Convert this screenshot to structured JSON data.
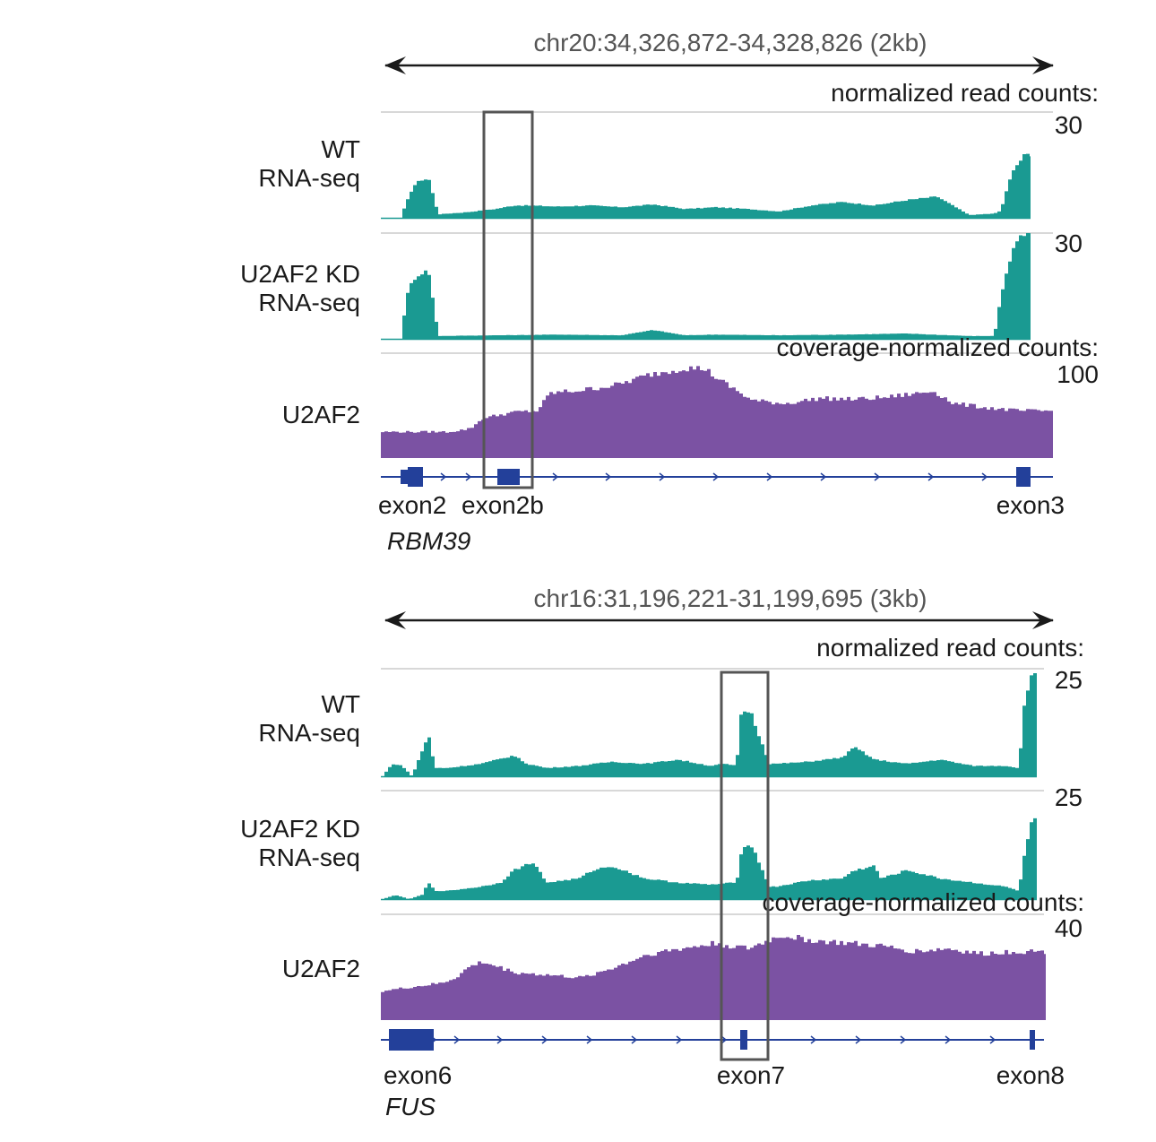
{
  "chart_data": [
    {
      "type": "area",
      "region": "chr20:34,326,872-34,328,826 (2kb)",
      "gene": "RBM39",
      "exons": [
        "exon2",
        "exon2b",
        "exon3"
      ],
      "rna_axis_label": "normalized read counts:",
      "clip_axis_label": "coverage-normalized counts:",
      "highlighted_exon": "exon2b",
      "tracks": [
        {
          "name_lines": [
            "WT",
            "RNA-seq"
          ],
          "color": "#1a9a92",
          "ymax": 30,
          "ymax_label": "30",
          "x": [
            0,
            0.02,
            0.035,
            0.045,
            0.06,
            0.1,
            0.15,
            0.18,
            0.2,
            0.25,
            0.3,
            0.35,
            0.4,
            0.45,
            0.5,
            0.55,
            0.6,
            0.65,
            0.7,
            0.75,
            0.8,
            0.85,
            0.9,
            0.94,
            0.95,
            0.97,
            0.99,
            1
          ],
          "values": [
            0,
            9,
            11,
            11,
            1,
            1.5,
            2.5,
            3.5,
            3.5,
            3.2,
            3.5,
            3,
            3.8,
            2.5,
            3,
            2.5,
            1.8,
            3.5,
            4.5,
            3.5,
            5,
            6,
            0.8,
            1.2,
            2,
            14,
            18,
            18
          ]
        },
        {
          "name_lines": [
            "U2AF2 KD",
            "RNA-seq"
          ],
          "color": "#1a9a92",
          "ymax": 30,
          "ymax_label": "30",
          "x": [
            0,
            0.01,
            0.02,
            0.035,
            0.045,
            0.06,
            0.15,
            0.25,
            0.35,
            0.4,
            0.45,
            0.5,
            0.6,
            0.7,
            0.8,
            0.9,
            0.94,
            0.95,
            0.97,
            0.99,
            1
          ],
          "values": [
            0,
            12,
            17,
            19,
            19,
            0.8,
            1,
            1.2,
            1,
            2.5,
            1,
            1.2,
            1,
            1.2,
            1.5,
            0.8,
            0.8,
            12,
            26,
            30,
            30
          ]
        },
        {
          "name_lines": [
            "U2AF2"
          ],
          "color": "#7b52a3",
          "ymax": 100,
          "ymax_label": "100",
          "x": [
            0,
            0.05,
            0.1,
            0.13,
            0.15,
            0.18,
            0.2,
            0.23,
            0.25,
            0.3,
            0.35,
            0.4,
            0.45,
            0.48,
            0.5,
            0.55,
            0.6,
            0.65,
            0.7,
            0.75,
            0.8,
            0.82,
            0.85,
            0.9,
            0.95,
            1
          ],
          "values": [
            25,
            25,
            25,
            28,
            38,
            42,
            44,
            45,
            62,
            65,
            70,
            80,
            86,
            85,
            75,
            55,
            52,
            57,
            56,
            58,
            62,
            64,
            52,
            48,
            45,
            45
          ]
        }
      ]
    },
    {
      "type": "area",
      "region": "chr16:31,196,221-31,199,695 (3kb)",
      "gene": "FUS",
      "exons": [
        "exon6",
        "exon7",
        "exon8"
      ],
      "rna_axis_label": "normalized read counts:",
      "clip_axis_label": "coverage-normalized counts:",
      "highlighted_exon": "exon7",
      "tracks": [
        {
          "name_lines": [
            "WT",
            "RNA-seq"
          ],
          "color": "#1a9a92",
          "ymax": 25,
          "ymax_label": "25",
          "x": [
            0,
            0.015,
            0.03,
            0.045,
            0.06,
            0.07,
            0.08,
            0.1,
            0.15,
            0.2,
            0.22,
            0.25,
            0.3,
            0.35,
            0.4,
            0.45,
            0.5,
            0.52,
            0.54,
            0.545,
            0.56,
            0.59,
            0.6,
            0.65,
            0.7,
            0.72,
            0.75,
            0.8,
            0.85,
            0.9,
            0.95,
            0.97,
            0.98,
            0.99,
            1
          ],
          "values": [
            0,
            3,
            2.5,
            0,
            6,
            10,
            2,
            2,
            3,
            5,
            3,
            2,
            2.5,
            3.5,
            3,
            4,
            2.5,
            3,
            2.5,
            15,
            16,
            3,
            3,
            3.5,
            4.5,
            7,
            4,
            3,
            4,
            2.5,
            2.5,
            2,
            20,
            24,
            24
          ]
        },
        {
          "name_lines": [
            "U2AF2 KD",
            "RNA-seq"
          ],
          "color": "#1a9a92",
          "ymax": 25,
          "ymax_label": "25",
          "x": [
            0,
            0.02,
            0.04,
            0.06,
            0.07,
            0.08,
            0.1,
            0.15,
            0.18,
            0.2,
            0.23,
            0.25,
            0.3,
            0.32,
            0.35,
            0.4,
            0.45,
            0.5,
            0.54,
            0.545,
            0.56,
            0.59,
            0.6,
            0.65,
            0.7,
            0.72,
            0.75,
            0.76,
            0.8,
            0.85,
            0.9,
            0.95,
            0.97,
            0.98,
            0.99,
            1
          ],
          "values": [
            0,
            1,
            0,
            1,
            4,
            2,
            2,
            3,
            4,
            7,
            9,
            4,
            5,
            7,
            8,
            5,
            4,
            3.5,
            4,
            11,
            14,
            3,
            3,
            4.5,
            5,
            7,
            8,
            5,
            7,
            5,
            4,
            3,
            2,
            12,
            19,
            19
          ]
        },
        {
          "name_lines": [
            "U2AF2"
          ],
          "color": "#7b52a3",
          "ymax": 40,
          "ymax_label": "40",
          "x": [
            0,
            0.03,
            0.06,
            0.09,
            0.11,
            0.13,
            0.15,
            0.2,
            0.25,
            0.3,
            0.35,
            0.4,
            0.45,
            0.5,
            0.55,
            0.6,
            0.65,
            0.7,
            0.75,
            0.8,
            0.85,
            0.9,
            0.95,
            1
          ],
          "values": [
            11,
            12,
            13,
            14,
            16,
            20,
            22,
            18,
            17,
            16,
            20,
            25,
            27,
            29,
            27,
            32,
            30,
            29,
            28,
            26,
            27,
            25,
            26,
            26
          ]
        }
      ]
    }
  ]
}
